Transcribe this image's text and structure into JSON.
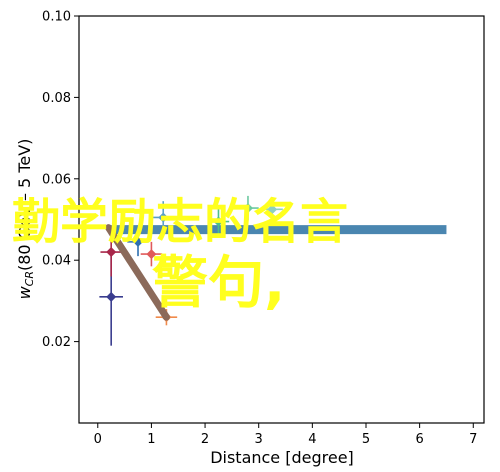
{
  "chart_data": {
    "type": "scatter",
    "xlabel": "Distance [degree]",
    "ylabel": "w_CR(80 GeV – 5 TeV)",
    "ylabel_parts": {
      "w": "w",
      "sub": "CR",
      "rest": "(80 GeV – 5 TeV)"
    },
    "xlim": [
      -0.35,
      7.2
    ],
    "ylim": [
      0.0,
      0.1
    ],
    "xticks": [
      "0",
      "1",
      "2",
      "3",
      "4",
      "5",
      "6",
      "7"
    ],
    "yticks": [
      "0.02",
      "0.04",
      "0.06",
      "0.08",
      "0.10"
    ],
    "grid": false,
    "reference_line": {
      "y": 0.0475,
      "x_start": 0.2,
      "x_end": 6.5,
      "color": "#4a86b0"
    },
    "diagonal_band": {
      "x_start": 0.2,
      "y_start": 0.048,
      "x_end": 1.28,
      "y_end": 0.026,
      "color": "#8b6a5a"
    },
    "points": [
      {
        "x": 0.25,
        "y": 0.031,
        "yerr": 0.012,
        "xerr": 0.22,
        "color": "#3a3d8f"
      },
      {
        "x": 0.25,
        "y": 0.042,
        "yerr": 0.006,
        "xerr": 0.2,
        "color": "#a8274a"
      },
      {
        "x": 0.75,
        "y": 0.0445,
        "yerr": 0.0035,
        "xerr": 0.2,
        "color": "#2e6fb0"
      },
      {
        "x": 1.0,
        "y": 0.0415,
        "yerr": 0.003,
        "xerr": 0.2,
        "color": "#e05a5a"
      },
      {
        "x": 1.28,
        "y": 0.026,
        "yerr": 0.002,
        "xerr": 0.2,
        "color": "#f08a4b"
      },
      {
        "x": 1.22,
        "y": 0.0505,
        "yerr": 0.004,
        "xerr": 0.2,
        "color": "#5aa0c8"
      },
      {
        "x": 2.25,
        "y": 0.0495,
        "yerr": 0.003,
        "xerr": 0.2,
        "color": "#4cc08a"
      },
      {
        "x": 2.8,
        "y": 0.0528,
        "yerr": 0.003,
        "xerr": 0.2,
        "color": "#6cc9a0"
      },
      {
        "x": 3.25,
        "y": 0.0525,
        "yerr": 0.003,
        "xerr": 0.2,
        "color": "#8ed0c0"
      }
    ]
  },
  "overlay": {
    "line1": "勤学励志的名言",
    "line2": "警句,"
  }
}
